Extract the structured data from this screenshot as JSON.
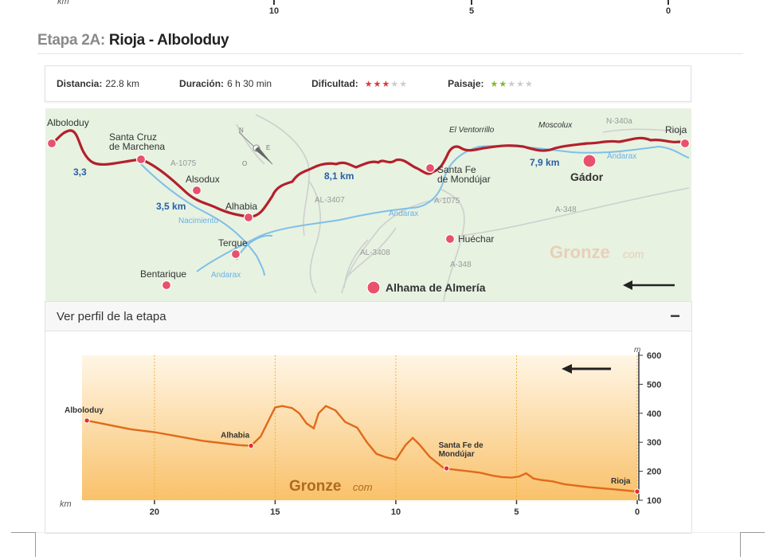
{
  "prev_profile": {
    "axis_label": "km",
    "ticks": [
      "10",
      "5",
      "0"
    ]
  },
  "stage": {
    "prefix": "Etapa 2A:",
    "name": "Rioja - Alboloduy"
  },
  "stats": {
    "distance_label": "Distancia:",
    "distance_value": "22.8 km",
    "duration_label": "Duración:",
    "duration_value": "6 h 30 min",
    "difficulty_label": "Dificultad:",
    "difficulty_rating": 3,
    "difficulty_max": 5,
    "landscape_label": "Paisaje:",
    "landscape_rating": 2,
    "landscape_max": 5,
    "difficulty_color": "#d93a3a",
    "landscape_color": "#7dbb2e",
    "empty_star_color": "#cccccc"
  },
  "map": {
    "places": {
      "alboloduy": "Alboloduy",
      "santa_cruz_1": "Santa Cruz",
      "santa_cruz_2": "de Marchena",
      "alsodux": "Alsodux",
      "alhabia": "Alhabia",
      "terque": "Terque",
      "bentarique": "Bentarique",
      "santa_fe_1": "Santa Fe",
      "santa_fe_2": "de Mondújar",
      "huechar": "Huéchar",
      "alhama": "Alhama de Almería",
      "gador": "Gádor",
      "rioja": "Rioja",
      "ventorrillo": "El Ventorrillo",
      "moscolux": "Moscolux"
    },
    "roads": {
      "a1075_w": "A-1075",
      "al3407": "AL-3407",
      "a1075_e": "A-1075",
      "a348_e": "A-348",
      "al3408": "AL-3408",
      "a348_s": "A-348",
      "n340a": "N-340a"
    },
    "rivers": {
      "nacimiento": "Nacimiento",
      "andarax_sw": "Andarax",
      "andarax_c": "Andarax",
      "andarax_e": "Andarax"
    },
    "distances": {
      "d1": "3,3",
      "d2": "3,5 km",
      "d3": "8,1 km",
      "d4": "7,9 km"
    },
    "watermark_main": "Gronze",
    "watermark_com": "com",
    "colors": {
      "route": "#b3202c",
      "river": "#7fbfe8",
      "road": "#c8c8c8",
      "land": "#e7f2e1",
      "label_blue": "#2a5ea8"
    }
  },
  "profile": {
    "header": "Ver perfil de la etapa",
    "toggle": "−",
    "watermark_main": "Gronze",
    "watermark_com": "com"
  },
  "chart_data": {
    "type": "area",
    "title": "",
    "xlabel": "km",
    "ylabel": "m",
    "xlim": [
      23,
      0
    ],
    "ylim": [
      100,
      600
    ],
    "x_ticks": [
      20,
      15,
      10,
      5,
      0
    ],
    "y_ticks": [
      100,
      200,
      300,
      400,
      500,
      600
    ],
    "series": [
      {
        "x": [
          22.8,
          21,
          20,
          19,
          18,
          17,
          16.5,
          16,
          15.6,
          15.3,
          15,
          14.7,
          14.3,
          14,
          13.7,
          13.4,
          13.2,
          12.9,
          12.5,
          12.1,
          11.6,
          11.2,
          10.8,
          10.4,
          10,
          9.6,
          9.3,
          9,
          8.6,
          8.3,
          8,
          7.5,
          7,
          6.5,
          6,
          5.6,
          5.2,
          4.9,
          4.6,
          4.3,
          4,
          3.5,
          3,
          2,
          1,
          0
        ],
        "y": [
          375,
          345,
          335,
          320,
          305,
          295,
          290,
          288,
          320,
          370,
          420,
          425,
          418,
          400,
          365,
          348,
          400,
          425,
          410,
          370,
          350,
          300,
          260,
          248,
          240,
          290,
          315,
          290,
          250,
          230,
          210,
          205,
          200,
          195,
          185,
          180,
          178,
          182,
          193,
          175,
          170,
          165,
          155,
          145,
          138,
          130
        ]
      }
    ],
    "waypoints": [
      {
        "name": "Alboloduy",
        "x": 22.8,
        "y": 375
      },
      {
        "name": "Alhabia",
        "x": 16,
        "y": 288
      },
      {
        "name": "Santa Fe de",
        "name2": "Mondújar",
        "x": 7.9,
        "y": 210
      },
      {
        "name": "Rioja",
        "x": 0,
        "y": 130
      }
    ],
    "grid": true,
    "direction_arrow": "right-to-left",
    "colors": {
      "line": "#e06a1a",
      "fill_top": "#fff6e6",
      "fill_bottom": "#f9c16a",
      "grid": "#f0b23c",
      "marker": "#e03030"
    }
  }
}
